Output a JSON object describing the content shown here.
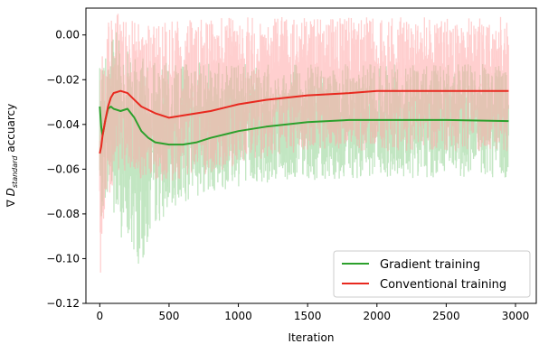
{
  "chart_data": {
    "type": "line",
    "xlabel": "Iteration",
    "ylabel_prefix": "∇ ",
    "ylabel_var": "D",
    "ylabel_sub": "standard",
    "ylabel_suffix": " accuarcy",
    "xlim": [
      -100,
      3150
    ],
    "ylim": [
      -0.12,
      0.012
    ],
    "x_ticks": [
      0,
      500,
      1000,
      1500,
      2000,
      2500,
      3000
    ],
    "x_tick_labels": [
      "0",
      "500",
      "1000",
      "1500",
      "2000",
      "2500",
      "3000"
    ],
    "y_ticks": [
      0.0,
      -0.02,
      -0.04,
      -0.06,
      -0.08,
      -0.1,
      -0.12
    ],
    "y_tick_labels": [
      "0.00",
      "−0.02",
      "−0.04",
      "−0.06",
      "−0.08",
      "−0.10",
      "−0.12"
    ],
    "legend_position": "lower-right",
    "series": [
      {
        "name": "Gradient training",
        "color": "#2ca02c",
        "band_color": "#8fd18f",
        "x": [
          0,
          10,
          20,
          40,
          60,
          80,
          100,
          150,
          200,
          250,
          300,
          350,
          400,
          500,
          600,
          700,
          800,
          1000,
          1200,
          1500,
          1800,
          2000,
          2500,
          2950
        ],
        "values": [
          -0.032,
          -0.041,
          -0.045,
          -0.038,
          -0.033,
          -0.032,
          -0.033,
          -0.034,
          -0.033,
          -0.037,
          -0.043,
          -0.046,
          -0.048,
          -0.049,
          -0.049,
          -0.048,
          -0.046,
          -0.043,
          -0.041,
          -0.039,
          -0.038,
          -0.038,
          -0.038,
          -0.0385
        ],
        "band_low": [
          -0.09,
          -0.085,
          -0.08,
          -0.075,
          -0.07,
          -0.07,
          -0.085,
          -0.09,
          -0.095,
          -0.1,
          -0.105,
          -0.095,
          -0.085,
          -0.08,
          -0.075,
          -0.072,
          -0.07,
          -0.068,
          -0.066,
          -0.065,
          -0.064,
          -0.064,
          -0.064,
          -0.064
        ],
        "band_high": [
          0.0,
          -0.01,
          -0.015,
          -0.01,
          -0.005,
          0.0,
          0.002,
          0.0,
          -0.005,
          -0.008,
          -0.01,
          -0.012,
          -0.012,
          -0.012,
          -0.012,
          -0.012,
          -0.012,
          -0.013,
          -0.013,
          -0.013,
          -0.013,
          -0.013,
          -0.013,
          -0.013
        ]
      },
      {
        "name": "Conventional training",
        "color": "#e8291f",
        "band_color": "#ffa8a8",
        "x": [
          0,
          10,
          20,
          40,
          60,
          80,
          100,
          150,
          200,
          250,
          300,
          400,
          500,
          600,
          800,
          1000,
          1200,
          1500,
          1800,
          2000,
          2500,
          2950
        ],
        "values": [
          -0.053,
          -0.05,
          -0.045,
          -0.038,
          -0.032,
          -0.028,
          -0.026,
          -0.025,
          -0.026,
          -0.029,
          -0.032,
          -0.035,
          -0.037,
          -0.036,
          -0.034,
          -0.031,
          -0.029,
          -0.027,
          -0.026,
          -0.025,
          -0.025,
          -0.025
        ],
        "band_low": [
          -0.12,
          -0.105,
          -0.095,
          -0.085,
          -0.075,
          -0.07,
          -0.065,
          -0.063,
          -0.062,
          -0.064,
          -0.066,
          -0.068,
          -0.066,
          -0.064,
          -0.062,
          -0.058,
          -0.055,
          -0.053,
          -0.052,
          -0.052,
          -0.052,
          -0.052
        ],
        "band_high": [
          -0.02,
          -0.01,
          -0.005,
          0.002,
          0.008,
          0.01,
          0.01,
          0.01,
          0.008,
          0.006,
          0.005,
          0.005,
          0.006,
          0.007,
          0.008,
          0.008,
          0.008,
          0.008,
          0.008,
          0.008,
          0.008,
          0.008
        ]
      }
    ]
  }
}
